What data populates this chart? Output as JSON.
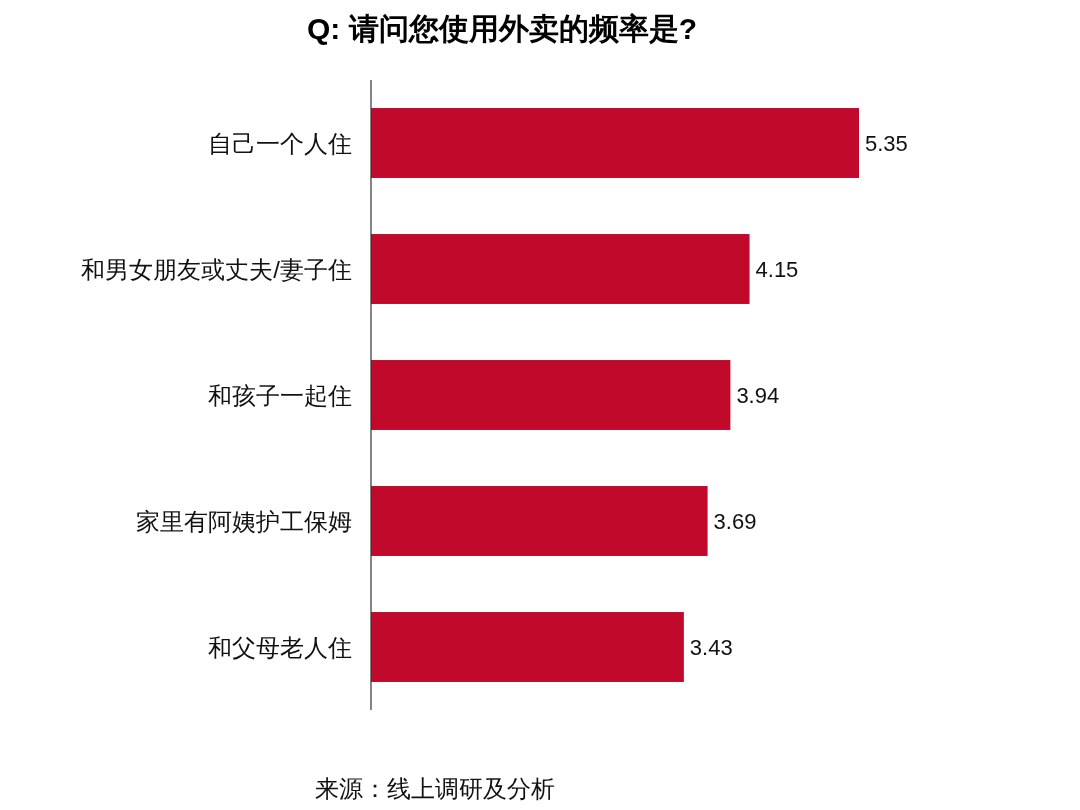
{
  "chart_data": {
    "type": "bar",
    "orientation": "horizontal",
    "title": "Q: 请问您使用外卖的频率是?",
    "categories": [
      "自己一个人住",
      "和男女朋友或丈夫/妻子住",
      "和孩子一起住",
      "家里有阿姨护工保姆",
      "和父母老人住"
    ],
    "values": [
      5.35,
      4.15,
      3.94,
      3.69,
      3.43
    ],
    "color": "#c0092b",
    "data_labels": true,
    "annotations": [
      "来源：线上调研及分析"
    ]
  }
}
